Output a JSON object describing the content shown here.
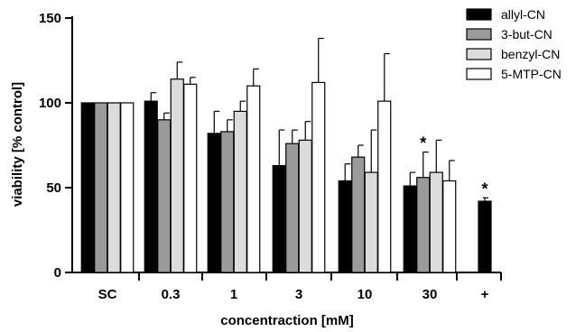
{
  "chart_data": {
    "type": "bar",
    "categories": [
      "SC",
      "0.3",
      "1",
      "3",
      "10",
      "30",
      "+"
    ],
    "xlabel": "concentraction [mM]",
    "ylabel": "viability [% control]",
    "ylim": [
      0,
      150
    ],
    "yticks": [
      "0",
      "50",
      "100",
      "150"
    ],
    "grid": false,
    "legend_position": "top-right",
    "series": [
      {
        "name": "allyl-CN",
        "color": "#000000",
        "values": [
          100,
          101,
          82,
          63,
          54,
          51,
          null
        ],
        "errors": [
          0,
          5,
          13,
          21,
          10,
          8,
          null
        ]
      },
      {
        "name": "3-but-CN",
        "color": "#9a9a9a",
        "values": [
          100,
          90,
          83,
          76,
          68,
          56,
          null
        ],
        "errors": [
          0,
          4,
          7,
          8,
          7,
          15,
          null
        ]
      },
      {
        "name": "benzyl-CN",
        "color": "#dcdcdc",
        "values": [
          100,
          114,
          95,
          78,
          59,
          59,
          null
        ],
        "errors": [
          0,
          10,
          6,
          11,
          25,
          19,
          null
        ]
      },
      {
        "name": "5-MTP-CN",
        "color": "#ffffff",
        "values": [
          100,
          111,
          110,
          112,
          101,
          54,
          null
        ],
        "errors": [
          0,
          4,
          10,
          26,
          28,
          12,
          null
        ]
      }
    ],
    "positive_control": {
      "label": "+",
      "value": 42,
      "error": 2,
      "color": "#000000"
    },
    "annotations": [
      {
        "text": "*",
        "category": "30",
        "series": "3-but-CN"
      },
      {
        "text": "*",
        "category": "+",
        "series": "positive_control"
      }
    ]
  }
}
